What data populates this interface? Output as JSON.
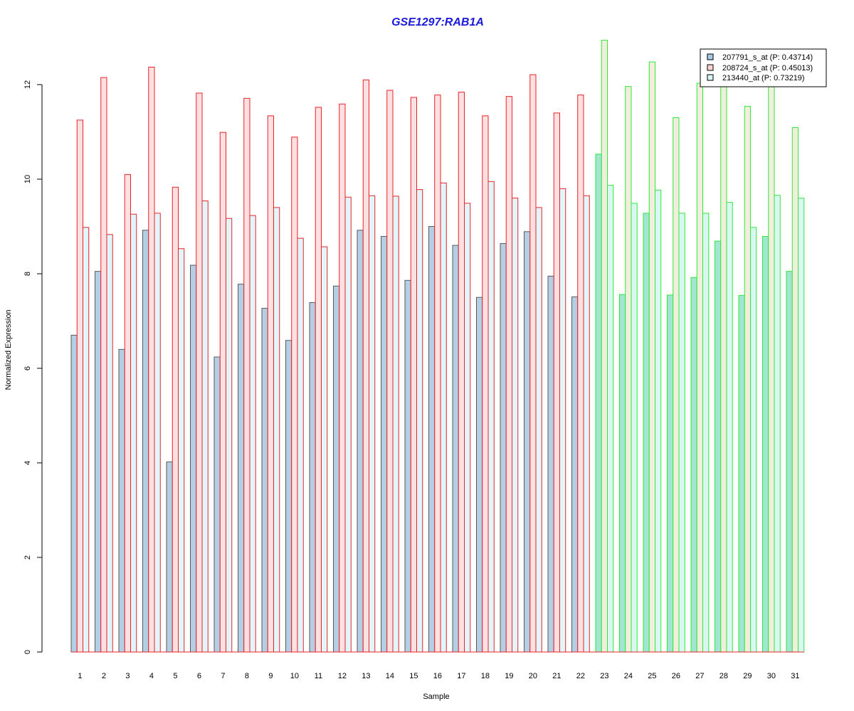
{
  "chart_data": {
    "type": "bar",
    "title": "GSE1297:RAB1A",
    "xlabel": "Sample",
    "ylabel": "Normalized Expression",
    "categories": [
      "1",
      "2",
      "3",
      "4",
      "5",
      "6",
      "7",
      "8",
      "9",
      "10",
      "11",
      "12",
      "13",
      "14",
      "15",
      "16",
      "17",
      "18",
      "19",
      "20",
      "21",
      "22",
      "23",
      "24",
      "25",
      "26",
      "27",
      "28",
      "29",
      "30",
      "31"
    ],
    "ylim": [
      0,
      13
    ],
    "yticks": [
      "0",
      "2",
      "4",
      "6",
      "8",
      "10",
      "12"
    ],
    "group_split_after": 22,
    "series": [
      {
        "name": "207791_s_at (P: 0.43714)",
        "values": [
          6.7,
          8.05,
          6.4,
          8.92,
          4.02,
          8.18,
          6.24,
          7.78,
          7.27,
          6.59,
          7.39,
          7.74,
          8.92,
          8.79,
          7.86,
          9.0,
          8.6,
          7.5,
          8.64,
          8.89,
          7.95,
          7.51,
          10.53,
          7.56,
          9.28,
          7.55,
          7.92,
          8.69,
          7.54,
          8.79,
          8.05
        ]
      },
      {
        "name": "208724_s_at (P: 0.45013)",
        "values": [
          11.25,
          12.15,
          10.1,
          12.37,
          9.83,
          11.82,
          10.99,
          11.71,
          11.34,
          10.89,
          11.52,
          11.59,
          12.1,
          11.88,
          11.73,
          11.78,
          11.84,
          11.34,
          11.75,
          12.21,
          11.4,
          11.78,
          12.94,
          11.96,
          12.48,
          11.3,
          12.03,
          12.02,
          11.54,
          12.0,
          11.09
        ]
      },
      {
        "name": "213440_at (P: 0.73219)",
        "values": [
          8.98,
          8.83,
          9.26,
          9.28,
          8.53,
          9.54,
          9.17,
          9.23,
          9.4,
          8.75,
          8.57,
          9.62,
          9.65,
          9.64,
          9.78,
          9.92,
          9.49,
          9.95,
          9.6,
          9.4,
          9.8,
          9.65,
          9.87,
          9.49,
          9.77,
          9.28,
          9.28,
          9.51,
          8.98,
          9.66,
          9.6
        ]
      }
    ],
    "colors": {
      "group1_fill_1": "#b4cfe3",
      "group1_fill_2": "#ffe0e0",
      "group1_fill_3": "#e0f6fb",
      "group1_stroke_1": "#5a5a5a",
      "group1_stroke": "#e8232a",
      "group2_fill_1": "#a0e6d2",
      "group2_fill_2": "#f1eedc",
      "group2_fill_3": "#d9f8f2",
      "group2_stroke": "#2ee83a",
      "legend_swatch_1": "#a6cbe0",
      "legend_swatch_2": "#ffd2d2",
      "legend_swatch_3": "#d8f4f8",
      "title": "#1a1adb"
    },
    "legend_position": "top-right",
    "grid": false
  }
}
